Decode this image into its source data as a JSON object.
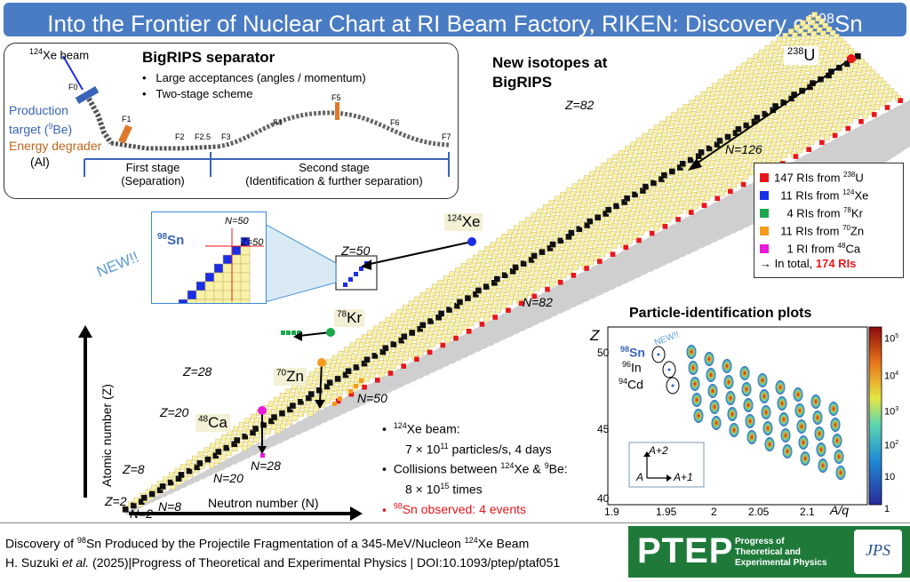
{
  "title": {
    "main": "Into the Frontier of Nuclear Chart at RI Beam Factory, RIKEN: Discovery of ",
    "sup": "98",
    "tail": "Sn"
  },
  "bigrips": {
    "heading": "BigRIPS separator",
    "bullets": [
      "Large acceptances (angles / momentum)",
      "Two-stage scheme"
    ],
    "beam_label": "Xe beam",
    "beam_sup": "124",
    "target_label": "Production",
    "target_label2": "target (",
    "target_sup": "9",
    "target_tail": "Be)",
    "degrader_label": "Energy degrader",
    "degrader_sub": "(Al)",
    "foci": [
      "F0",
      "F1",
      "F2",
      "F2.5",
      "F3",
      "F4",
      "F5",
      "F6",
      "F7"
    ],
    "stage1": "First stage",
    "stage1_sub": "(Separation)",
    "stage2": "Second stage",
    "stage2_sub": "(Identification & further separation)"
  },
  "chart": {
    "heading_line1": "New isotopes at",
    "heading_line2": "BigRIPS",
    "u238": {
      "sup": "238",
      "tail": "U"
    },
    "xe124": {
      "sup": "124",
      "tail": "Xe"
    },
    "kr78": {
      "sup": "78",
      "tail": "Kr"
    },
    "zn70": {
      "sup": "70",
      "tail": "Zn"
    },
    "ca48": {
      "sup": "48",
      "tail": "Ca"
    },
    "magic": [
      "Z=82",
      "N=126",
      "Z=50",
      "N=82",
      "Z=28",
      "N=50",
      "Z=20",
      "N=28",
      "N=20",
      "Z=8",
      "N=8",
      "Z=2",
      "N=2"
    ],
    "x_axis": "Neutron number (N)",
    "y_axis": "Atomic number (Z)",
    "new_label": "NEW!!",
    "inset": {
      "sn98_sup": "98",
      "sn98": "Sn",
      "n50": "N=50",
      "z50": "Z=50"
    }
  },
  "legend": {
    "items": [
      {
        "text": "147 RIs from ",
        "sup": "238",
        "tail": "U",
        "color": "#e8161b"
      },
      {
        "text": "11 RIs from ",
        "sup": "124",
        "tail": "Xe",
        "color": "#1a2ee6"
      },
      {
        "text": "4 RIs from ",
        "sup": "78",
        "tail": "Kr",
        "color": "#1aa84a"
      },
      {
        "text": "11 RIs from ",
        "sup": "70",
        "tail": "Zn",
        "color": "#f59a1a"
      },
      {
        "text": "1 RI  from ",
        "sup": "48",
        "tail": "Ca",
        "color": "#e81adb"
      }
    ],
    "total_prefix": "→ In total, ",
    "total_value": "174 RIs"
  },
  "conditions": {
    "b1": "Xe beam:",
    "b1_sup": "124",
    "b1_line2": "7 × 10",
    "b1_exp": "11",
    "b1_tail": " particles/s, 4 days",
    "b2": "Collisions between ",
    "b2_sup1": "124",
    "b2_mid": "Xe & ",
    "b2_sup2": "9",
    "b2_tail": "Be:",
    "b2_line2": "8 × 10",
    "b2_exp": "15",
    "b2_tail2": " times",
    "b3_sup": "98",
    "b3": "Sn observed: 4 events"
  },
  "pid": {
    "heading": "Particle-identification plots",
    "ylabel": "Z",
    "xlabel": "A/q",
    "xticks": [
      "1.9",
      "1.95",
      "2",
      "2.05",
      "2.1"
    ],
    "yticks": [
      "40",
      "45",
      "50"
    ],
    "labels": [
      {
        "sup": "98",
        "tail": "Sn"
      },
      {
        "sup": "96",
        "tail": "In"
      },
      {
        "sup": "94",
        "tail": "Cd"
      }
    ],
    "new_label": "NEW!!",
    "cb_ticks": [
      "1",
      "10",
      "10",
      "10",
      "10",
      "10"
    ],
    "cb_exps": [
      "",
      "",
      "2",
      "3",
      "4",
      "5"
    ],
    "arrow_up": "A+2",
    "arrow_a": "A",
    "arrow_right": "A+1"
  },
  "footer": {
    "line1a": "Discovery of ",
    "line1_sup": "98",
    "line1b": "Sn Produced by the Projectile Fragmentation of a 345-MeV/Nucleon ",
    "line1_sup2": "124",
    "line1c": "Xe Beam",
    "line2a": "H. Suzuki ",
    "line2_etal": "et al.",
    "line2b": " (2025)|Progress of Theoretical and Experimental Physics | DOI:10.1093/ptep/ptaf051",
    "logo": "PTEP",
    "logo_text": [
      "Progress of",
      "Theoretical and",
      "Experimental Physics"
    ],
    "jps": "JPS"
  }
}
